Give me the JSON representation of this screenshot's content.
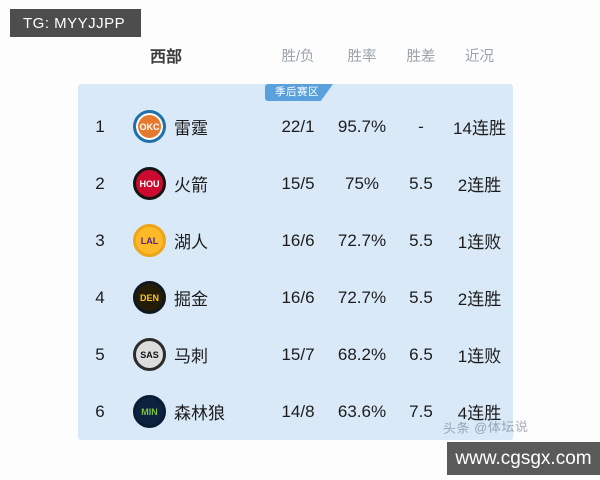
{
  "page": {
    "tg_badge": "TG: MYYJJPP",
    "watermark_bar": "www.cgsgx.com",
    "faint_watermark": "头条 @体坛说"
  },
  "standings": {
    "conference_label": "西部",
    "columns": [
      "胜/负",
      "胜率",
      "胜差",
      "近况"
    ],
    "playoff_zone_label": "季后赛区",
    "rows": [
      {
        "rank": "1",
        "abbr": "OKC",
        "name": "雷霆",
        "wl": "22/1",
        "pct": "95.7%",
        "gb": "-",
        "streak": "14连胜",
        "logo_bg": "#e5792f",
        "logo_ring": "#1d72ae",
        "logo_text": "#ffffff",
        "logo_inner": "#ffffff"
      },
      {
        "rank": "2",
        "abbr": "HOU",
        "name": "火箭",
        "wl": "15/5",
        "pct": "75%",
        "gb": "5.5",
        "streak": "2连胜",
        "logo_bg": "#cc0a2f",
        "logo_ring": "#141414",
        "logo_text": "#ffffff",
        "logo_inner": ""
      },
      {
        "rank": "3",
        "abbr": "LAL",
        "name": "湖人",
        "wl": "16/6",
        "pct": "72.7%",
        "gb": "5.5",
        "streak": "1连败",
        "logo_bg": "#fdb927",
        "logo_ring": "#eda51a",
        "logo_text": "#552583",
        "logo_inner": ""
      },
      {
        "rank": "4",
        "abbr": "DEN",
        "name": "掘金",
        "wl": "16/6",
        "pct": "72.7%",
        "gb": "5.5",
        "streak": "2连胜",
        "logo_bg": "#241c05",
        "logo_ring": "#10181f",
        "logo_text": "#fec524",
        "logo_inner": ""
      },
      {
        "rank": "5",
        "abbr": "SAS",
        "name": "马刺",
        "wl": "15/7",
        "pct": "68.2%",
        "gb": "6.5",
        "streak": "1连败",
        "logo_bg": "#dcdcdc",
        "logo_ring": "#2b2b2b",
        "logo_text": "#111111",
        "logo_inner": ""
      },
      {
        "rank": "6",
        "abbr": "MIN",
        "name": "森林狼",
        "wl": "14/8",
        "pct": "63.6%",
        "gb": "7.5",
        "streak": "4连胜",
        "logo_bg": "#0c2340",
        "logo_ring": "#0a1c33",
        "logo_text": "#7ac143",
        "logo_inner": ""
      }
    ]
  },
  "colors": {
    "panel_bg": "#d9e9f8",
    "zone_badge_bg": "#59a0dd",
    "tg_badge_bg": "#4d4d4d",
    "site_bar_bg": "#5a5a5a",
    "header_text": "#9aa3ab",
    "row_text": "#1c1c1c"
  }
}
